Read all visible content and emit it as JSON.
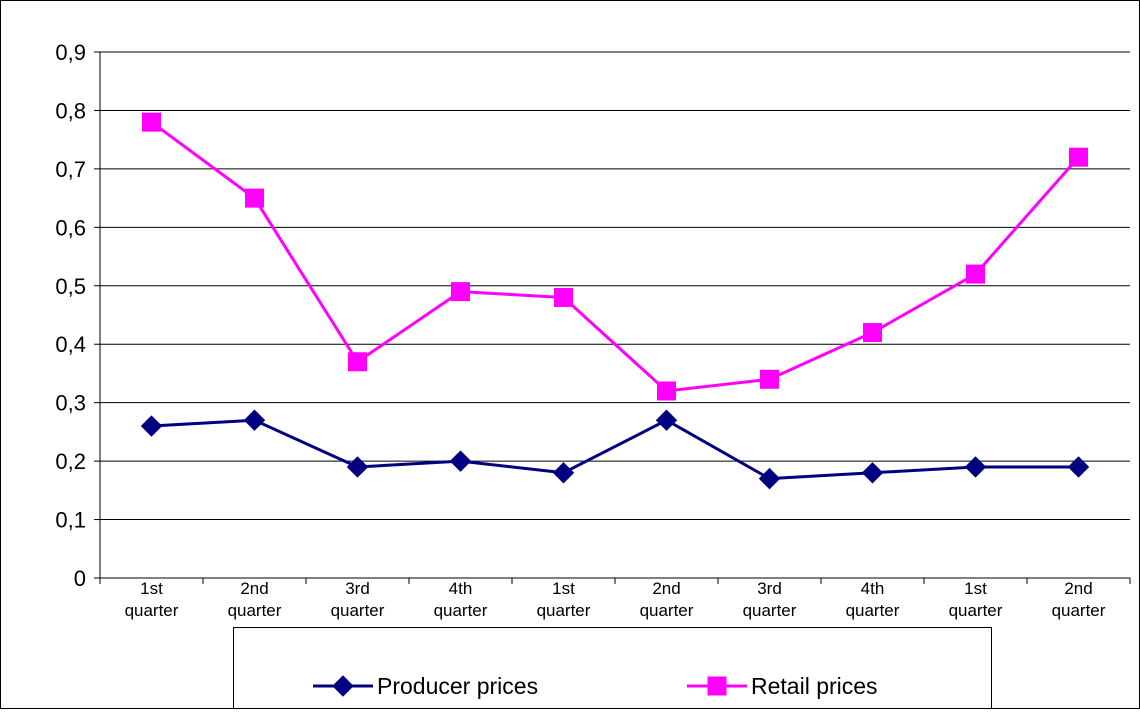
{
  "chart_data": {
    "type": "line",
    "title": "",
    "xlabel": "",
    "ylabel": "",
    "ylim": [
      0,
      0.9
    ],
    "y_ticks": [
      "0",
      "0,1",
      "0,2",
      "0,3",
      "0,4",
      "0,5",
      "0,6",
      "0,7",
      "0,8",
      "0,9"
    ],
    "y_tick_values": [
      0,
      0.1,
      0.2,
      0.3,
      0.4,
      0.5,
      0.6,
      0.7,
      0.8,
      0.9
    ],
    "grid": "horizontal",
    "legend_position": "bottom",
    "categories": [
      [
        "1st",
        "quarter"
      ],
      [
        "2nd",
        "quarter"
      ],
      [
        "3rd",
        "quarter"
      ],
      [
        "4th",
        "quarter"
      ],
      [
        "1st",
        "quarter"
      ],
      [
        "2nd",
        "quarter"
      ],
      [
        "3rd",
        "quarter"
      ],
      [
        "4th",
        "quarter"
      ],
      [
        "1st",
        "quarter"
      ],
      [
        "2nd",
        "quarter"
      ]
    ],
    "series": [
      {
        "name": "Producer prices",
        "color": "#000080",
        "marker": "diamond",
        "values": [
          0.26,
          0.27,
          0.19,
          0.2,
          0.18,
          0.27,
          0.17,
          0.18,
          0.19,
          0.19
        ]
      },
      {
        "name": "Retail prices",
        "color": "#FF00FF",
        "marker": "square",
        "values": [
          0.78,
          0.65,
          0.37,
          0.49,
          0.48,
          0.32,
          0.34,
          0.42,
          0.52,
          0.72
        ]
      }
    ]
  }
}
